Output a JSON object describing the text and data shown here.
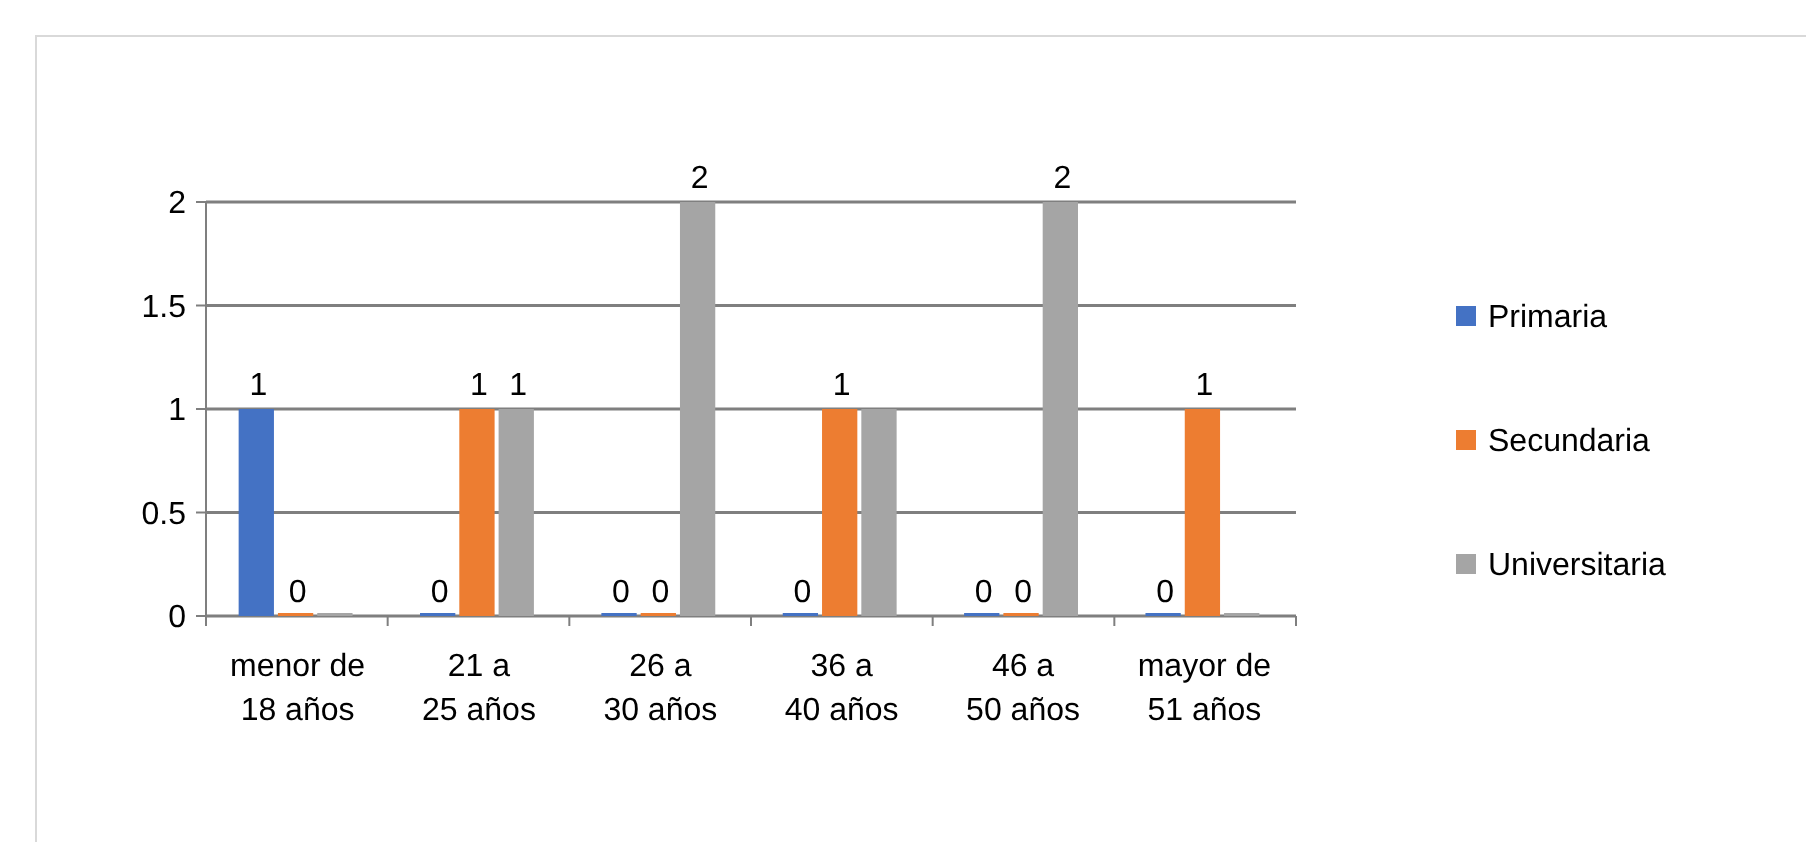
{
  "chart_data": {
    "type": "bar",
    "categories": [
      "menor de 18 años",
      "21 a 25 años",
      "26 a 30 años",
      "36 a 40 años",
      "46 a 50 años",
      "mayor de 51 años"
    ],
    "series": [
      {
        "name": "Primaria",
        "color": "#4472c4",
        "values": [
          1,
          0,
          0,
          0,
          0,
          0
        ],
        "value_labels": [
          "1",
          "0",
          "0",
          "0",
          "0",
          "0"
        ]
      },
      {
        "name": "Secundaria",
        "color": "#ed7d31",
        "values": [
          0,
          1,
          0,
          1,
          0,
          1
        ],
        "value_labels": [
          "0",
          "1",
          "0",
          "1",
          "0",
          "1"
        ]
      },
      {
        "name": "Universitaria",
        "color": "#a5a5a5",
        "values": [
          0,
          1,
          2,
          1,
          2,
          0
        ],
        "value_labels": [
          null,
          "1",
          "2",
          null,
          "2",
          null
        ]
      }
    ],
    "ylim": [
      0,
      2
    ],
    "yticks": [
      0,
      0.5,
      1,
      1.5,
      2
    ],
    "grid": "y",
    "legend": "right"
  }
}
